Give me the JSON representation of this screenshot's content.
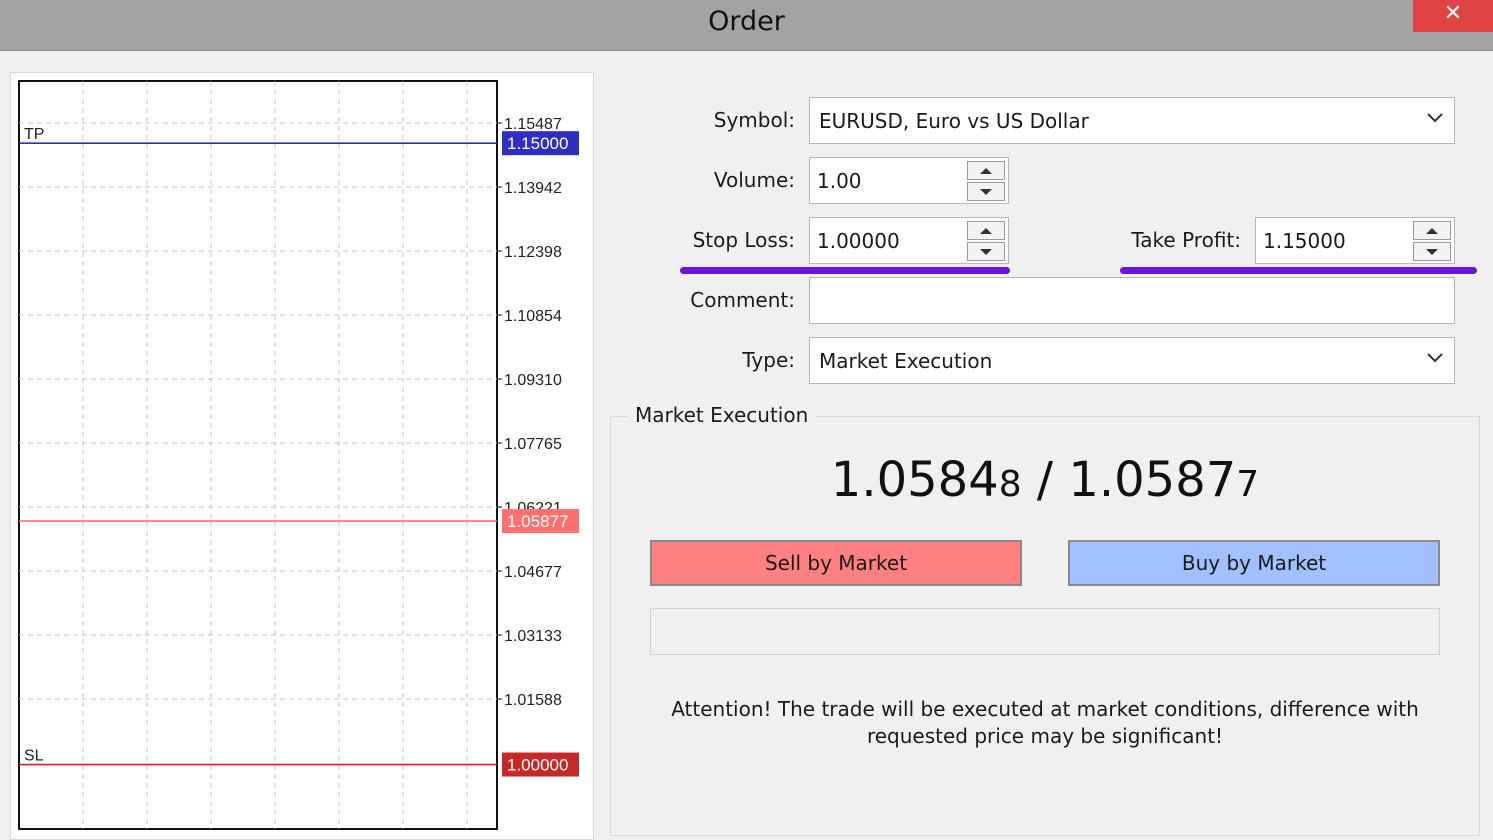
{
  "window": {
    "title": "Order",
    "close_glyph": "✕"
  },
  "chart": {
    "tick_labels": [
      "1.15487",
      "1.13942",
      "1.12398",
      "1.10854",
      "1.09310",
      "1.07765",
      "1.06221",
      "1.04677",
      "1.03133",
      "1.01588"
    ],
    "tp_label": "TP",
    "sl_label": "SL",
    "tp_price": "1.15000",
    "ask_price": "1.05877",
    "sl_price": "1.00000",
    "colors": {
      "tp": "#2f2fbf",
      "ask": "#ff6f6f",
      "sl": "#c62828"
    }
  },
  "form": {
    "symbol_label": "Symbol:",
    "symbol_value": "EURUSD, Euro vs US Dollar",
    "volume_label": "Volume:",
    "volume_value": "1.00",
    "stop_loss_label": "Stop Loss:",
    "stop_loss_value": "1.00000",
    "take_profit_label": "Take Profit:",
    "take_profit_value": "1.15000",
    "comment_label": "Comment:",
    "comment_value": "",
    "type_label": "Type:",
    "type_value": "Market Execution"
  },
  "execution": {
    "group_title": "Market Execution",
    "bid_main": "1.0584",
    "bid_last": "8",
    "separator": " / ",
    "ask_main": "1.0587",
    "ask_last": "7",
    "sell_label": "Sell by Market",
    "buy_label": "Buy by Market",
    "attention_text": "Attention! The trade will be executed at market conditions, difference with requested price may be significant!"
  }
}
